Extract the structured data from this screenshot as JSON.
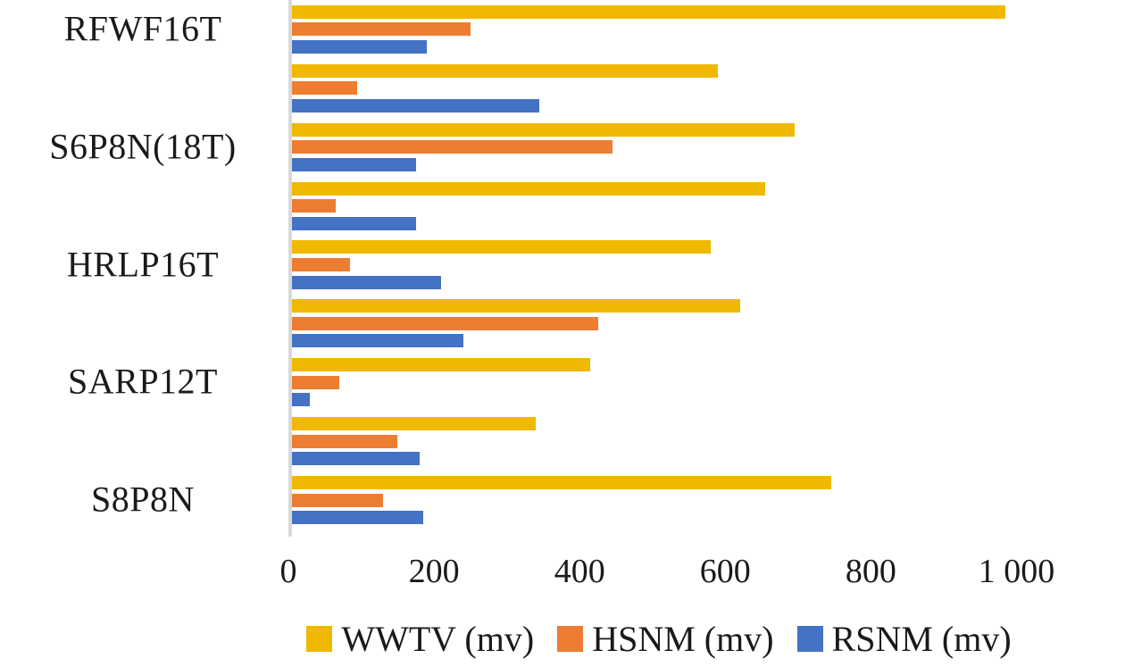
{
  "chart_data": {
    "type": "bar",
    "orientation": "horizontal",
    "title": "",
    "xlabel": "",
    "ylabel": "",
    "xlim": [
      0,
      1000
    ],
    "grid": false,
    "legend_position": "bottom",
    "xticks": [
      0,
      200,
      400,
      600,
      800,
      1000
    ],
    "xtick_labels": [
      "0",
      "200",
      "400",
      "600",
      "800",
      "1 000"
    ],
    "categories": [
      "RFWF16T",
      "",
      "S6P8N(18T)",
      "",
      "HRLP16T",
      "",
      "SARP12T",
      "",
      "S8P8N"
    ],
    "series": [
      {
        "name": "WWTV (mv)",
        "color": "#F0B800",
        "values": [
          985,
          590,
          695,
          655,
          580,
          620,
          415,
          340,
          745
        ]
      },
      {
        "name": "HSNM (mv)",
        "color": "#ED7D31",
        "values": [
          250,
          95,
          445,
          65,
          85,
          425,
          70,
          150,
          130
        ]
      },
      {
        "name": "RSNM (mv)",
        "color": "#4472C4",
        "values": [
          190,
          345,
          175,
          175,
          210,
          240,
          30,
          180,
          185
        ]
      }
    ],
    "colors": {
      "axis_line": "#d9d9d9",
      "text": "#1a1a1a",
      "background": "#ffffff"
    }
  }
}
